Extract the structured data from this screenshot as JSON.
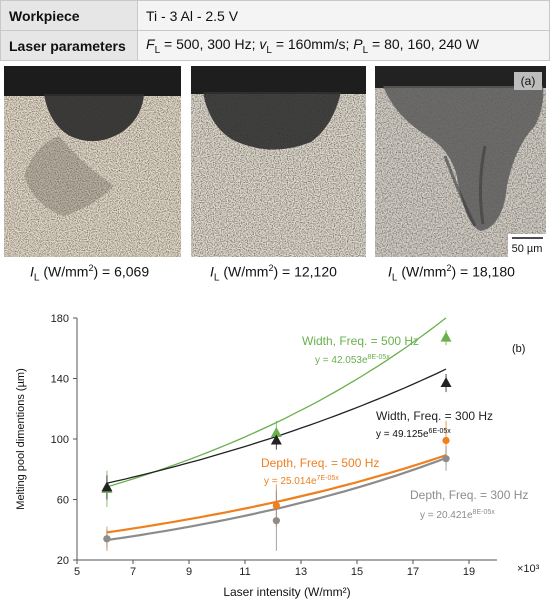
{
  "table": {
    "rows": [
      {
        "label": "Workpiece",
        "value": "Ti - 3 Al - 2.5 V"
      },
      {
        "label": "Laser parameters",
        "value": "F_L = 500, 300 Hz; v_L = 160mm/s; P_L = 80, 160, 240 W"
      }
    ],
    "laser_params": {
      "fl_sym": "F",
      "fl_sub": "L",
      "fl_val": "= 500, 300 Hz;",
      "vl_sym": "v",
      "vl_sub": "L",
      "vl_val": "= 160mm/s;",
      "pl_sym": "P",
      "pl_sub": "L",
      "pl_val": "= 80, 160, 240 W"
    }
  },
  "panel_a": {
    "tag": "(a)",
    "scale_bar": "50 µm",
    "intensity_prefix": "I",
    "intensity_sub": "L",
    "intensity_unit": " (W/mm",
    "intensity_unit_sup": "2",
    "intensity_unit_close": ") = ",
    "intensities": [
      "6,069",
      "12,120",
      "18,180"
    ]
  },
  "chart_data": {
    "type": "scatter",
    "tag": "(b)",
    "xlabel": "Laser intensity (W/mm²)",
    "ylabel": "Melting pool dimentions (µm)",
    "x_multiplier": "×10³",
    "xlim": [
      5,
      20
    ],
    "ylim": [
      20,
      180
    ],
    "x_ticks": [
      5,
      7,
      9,
      11,
      13,
      15,
      17,
      19
    ],
    "y_ticks": [
      20,
      60,
      100,
      140,
      180
    ],
    "grid": false,
    "series": [
      {
        "name": "Width, Freq. = 500 Hz",
        "color": "#6ab04c",
        "marker": "triangle",
        "x": [
          6.069,
          12.12,
          18.18
        ],
        "y": [
          67,
          104,
          167
        ],
        "err": [
          12,
          8,
          5
        ],
        "fit": {
          "label": "y = 42.053e",
          "exp": "8E-05x",
          "a": 42.053,
          "b": 0.08
        }
      },
      {
        "name": "Width, Freq. = 300 Hz",
        "color": "#222222",
        "marker": "triangle",
        "x": [
          6.069,
          12.12,
          18.18
        ],
        "y": [
          68,
          99,
          137
        ],
        "err": [
          8,
          6,
          6
        ],
        "fit": {
          "label": "y = 49.125e",
          "exp": "6E-05x",
          "a": 49.125,
          "b": 0.06
        }
      },
      {
        "name": "Depth, Freq. = 500 Hz",
        "color": "#f07f1e",
        "marker": "circle",
        "x": [
          6.069,
          12.12,
          18.18
        ],
        "y": [
          34,
          56,
          99
        ],
        "err": [
          8,
          14,
          13
        ],
        "fit": {
          "label": "y = 25.014e",
          "exp": "7E-05x",
          "a": 25.014,
          "b": 0.07
        }
      },
      {
        "name": "Depth, Freq. = 300 Hz",
        "color": "#8c8c8c",
        "marker": "circle",
        "x": [
          6.069,
          12.12,
          18.18
        ],
        "y": [
          34,
          46,
          87
        ],
        "err": [
          6,
          20,
          8
        ],
        "fit": {
          "label": "y = 20.421e",
          "exp": "8E-05x",
          "a": 20.421,
          "b": 0.08
        }
      }
    ]
  }
}
